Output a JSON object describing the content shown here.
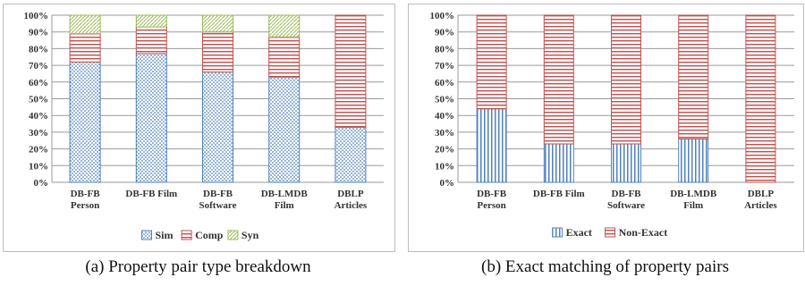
{
  "charts": [
    {
      "caption": "(a) Property pair type breakdown",
      "chart_data": {
        "type": "bar",
        "stacked": true,
        "categories": [
          [
            "DB-FB",
            "Person"
          ],
          [
            "DB-FB Film"
          ],
          [
            "DB-FB",
            "Software"
          ],
          [
            "DB-LMDB",
            "Film"
          ],
          [
            "DBLP",
            "Articles"
          ]
        ],
        "series": [
          {
            "name": "Sim",
            "values": [
              72,
              77,
              66,
              63,
              33
            ],
            "color": "#4f81bd",
            "pattern": "dots"
          },
          {
            "name": "Comp",
            "values": [
              17,
              16,
              24,
              24,
              67
            ],
            "color": "#c0504d",
            "pattern": "hlines"
          },
          {
            "name": "Syn",
            "values": [
              11,
              7,
              10,
              13,
              0
            ],
            "color": "#9bbb59",
            "pattern": "diag"
          }
        ],
        "ylim": [
          0,
          100
        ],
        "yticks": [
          "0%",
          "10%",
          "20%",
          "30%",
          "40%",
          "50%",
          "60%",
          "70%",
          "80%",
          "90%",
          "100%"
        ],
        "grid": true,
        "legend_position": "bottom"
      }
    },
    {
      "caption": "(b) Exact matching of property pairs",
      "chart_data": {
        "type": "bar",
        "stacked": true,
        "categories": [
          [
            "DB-FB",
            "Person"
          ],
          [
            "DB-FB Film"
          ],
          [
            "DB-FB",
            "Software"
          ],
          [
            "DB-LMDB",
            "Film"
          ],
          [
            "DBLP",
            "Articles"
          ]
        ],
        "series": [
          {
            "name": "Exact",
            "values": [
              44,
              23,
              23,
              26,
              0
            ],
            "color": "#4f81bd",
            "pattern": "vlines"
          },
          {
            "name": "Non-Exact",
            "values": [
              56,
              77,
              77,
              74,
              100
            ],
            "color": "#c0504d",
            "pattern": "hlines"
          }
        ],
        "ylim": [
          0,
          100
        ],
        "yticks": [
          "0%",
          "10%",
          "20%",
          "30%",
          "40%",
          "50%",
          "60%",
          "70%",
          "80%",
          "90%",
          "100%"
        ],
        "grid": true,
        "legend_position": "bottom"
      }
    }
  ]
}
